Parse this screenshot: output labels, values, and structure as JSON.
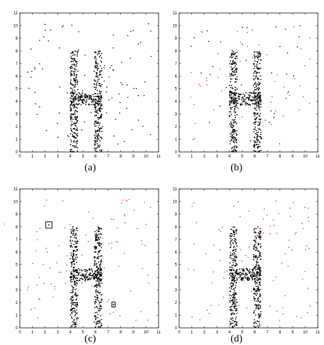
{
  "figure": {
    "panels": [
      {
        "caption": "(a)"
      },
      {
        "caption": "(b)"
      },
      {
        "caption": "(c)"
      },
      {
        "caption": "(d)"
      }
    ],
    "stray_mark": "..."
  },
  "chart_data": [
    {
      "type": "scatter",
      "caption": "(a)",
      "xlim": [
        0,
        11
      ],
      "ylim": [
        0,
        11
      ],
      "xticks": [
        "0",
        "1",
        "2",
        "3",
        "4",
        "5",
        "6",
        "7",
        "8",
        "9",
        "10",
        "11"
      ],
      "yticks": [
        "0",
        "1",
        "2",
        "3",
        "4",
        "5",
        "6",
        "7",
        "8",
        "9",
        "10",
        "11"
      ],
      "grid": false,
      "series": [
        {
          "color": "#000000",
          "shape": "H",
          "rects": [
            [
              4.0,
              4.6,
              0,
              8
            ],
            [
              5.9,
              6.5,
              0,
              8
            ],
            [
              4.0,
              6.5,
              3.7,
              4.7
            ]
          ],
          "points_per_rect": [
            230,
            230,
            150
          ]
        },
        {
          "color": "#000000",
          "shape": "uniform",
          "count": 95
        }
      ],
      "boxes": []
    },
    {
      "type": "scatter",
      "caption": "(b)",
      "xlim": [
        0,
        11
      ],
      "ylim": [
        0,
        11
      ],
      "xticks": [
        "0",
        "1",
        "2",
        "3",
        "4",
        "5",
        "6",
        "7",
        "8",
        "9",
        "10",
        "11"
      ],
      "yticks": [
        "0",
        "1",
        "2",
        "3",
        "4",
        "5",
        "6",
        "7",
        "8",
        "9",
        "10",
        "11"
      ],
      "grid": false,
      "series": [
        {
          "color": "#000000",
          "shape": "H",
          "rects": [
            [
              4.0,
              4.6,
              0,
              8
            ],
            [
              5.9,
              6.5,
              0,
              8
            ],
            [
              4.0,
              6.5,
              3.7,
              4.7
            ]
          ],
          "points_per_rect": [
            230,
            230,
            150
          ]
        },
        {
          "color": "#000000",
          "shape": "uniform",
          "count": 45
        },
        {
          "color": "#e8342a",
          "shape": "uniform",
          "count": 55
        }
      ],
      "boxes": []
    },
    {
      "type": "scatter",
      "caption": "(c)",
      "xlim": [
        0,
        11
      ],
      "ylim": [
        0,
        11
      ],
      "xticks": [
        "0",
        "1",
        "2",
        "3",
        "4",
        "5",
        "6",
        "7",
        "8",
        "9",
        "10",
        "11"
      ],
      "yticks": [
        "0",
        "1",
        "2",
        "3",
        "4",
        "5",
        "6",
        "7",
        "8",
        "9",
        "10",
        "11"
      ],
      "grid": false,
      "series": [
        {
          "color": "#000000",
          "shape": "H",
          "rects": [
            [
              4.0,
              4.6,
              0,
              8
            ],
            [
              5.9,
              6.5,
              0,
              8
            ],
            [
              4.0,
              6.5,
              3.7,
              4.7
            ]
          ],
          "points_per_rect": [
            230,
            230,
            150
          ]
        },
        {
          "color": "#e8342a",
          "shape": "uniform",
          "count": 95
        }
      ],
      "boxes": [
        {
          "x": [
            2.05,
            2.55
          ],
          "y": [
            7.9,
            8.4
          ]
        },
        {
          "x": [
            7.3,
            7.55
          ],
          "y": [
            1.65,
            2.05
          ]
        }
      ]
    },
    {
      "type": "scatter",
      "caption": "(d)",
      "xlim": [
        0,
        11
      ],
      "ylim": [
        0,
        11
      ],
      "xticks": [
        "0",
        "1",
        "2",
        "3",
        "4",
        "5",
        "6",
        "7",
        "8",
        "9",
        "10",
        "11"
      ],
      "yticks": [
        "0",
        "1",
        "2",
        "3",
        "4",
        "5",
        "6",
        "7",
        "8",
        "9",
        "10",
        "11"
      ],
      "grid": false,
      "series": [
        {
          "color": "#000000",
          "shape": "H",
          "rects": [
            [
              4.0,
              4.6,
              0,
              8
            ],
            [
              5.9,
              6.5,
              0,
              8
            ],
            [
              4.0,
              6.5,
              3.7,
              4.7
            ]
          ],
          "points_per_rect": [
            230,
            230,
            150
          ]
        },
        {
          "color": "#e8342a",
          "shape": "uniform",
          "count": 95
        }
      ],
      "boxes": []
    }
  ]
}
